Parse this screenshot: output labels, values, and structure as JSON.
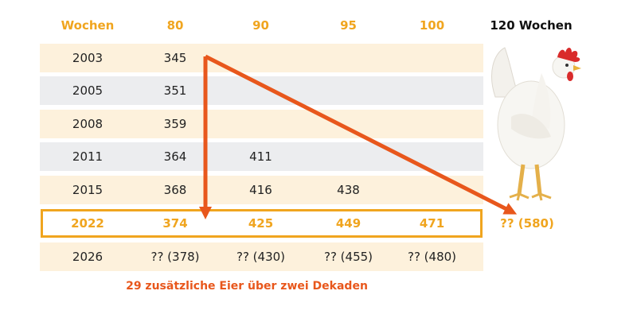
{
  "header": {
    "label": "Wochen",
    "cols": [
      "80",
      "90",
      "95",
      "100"
    ],
    "extra": "120 Wochen"
  },
  "rows": [
    {
      "year": "2003",
      "v80": "345",
      "v90": "",
      "v95": "",
      "v100": ""
    },
    {
      "year": "2005",
      "v80": "351",
      "v90": "",
      "v95": "",
      "v100": ""
    },
    {
      "year": "2008",
      "v80": "359",
      "v90": "",
      "v95": "",
      "v100": ""
    },
    {
      "year": "2011",
      "v80": "364",
      "v90": "411",
      "v95": "",
      "v100": ""
    },
    {
      "year": "2015",
      "v80": "368",
      "v90": "416",
      "v95": "438",
      "v100": ""
    },
    {
      "year": "2022",
      "v80": "374",
      "v90": "425",
      "v95": "449",
      "v100": "471"
    },
    {
      "year": "2026",
      "v80": "?? (378)",
      "v90": "?? (430)",
      "v95": "?? (455)",
      "v100": "?? (480)"
    }
  ],
  "projection_120": "?? (580)",
  "caption": "29 zusätzliche Eier über zwei Dekaden",
  "colors": {
    "accent": "#f0a51f",
    "arrow": "#e8571c",
    "row_cream": "#fdf1dc",
    "row_gray": "#ecedef"
  },
  "image": "white-hen-photo"
}
